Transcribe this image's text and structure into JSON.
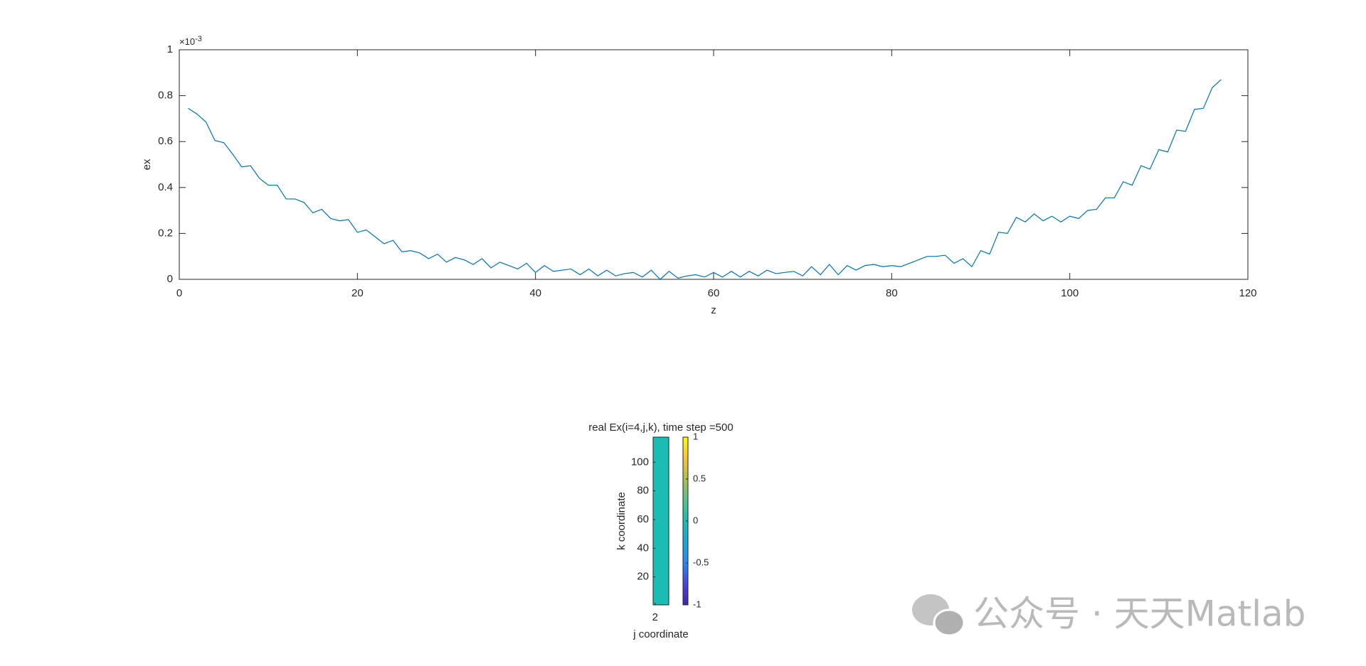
{
  "chart_data": [
    {
      "type": "line",
      "x_label": "z",
      "y_label": "ex",
      "y_exponent_base": "×10",
      "y_exponent_power": "-3",
      "xlim": [
        0,
        120
      ],
      "xticks": [
        0,
        20,
        40,
        60,
        80,
        100,
        120
      ],
      "ylim": [
        0,
        1
      ],
      "yticks": [
        0,
        0.2,
        0.4,
        0.6,
        0.8,
        1
      ],
      "x": [
        1,
        2,
        3,
        4,
        5,
        6,
        7,
        8,
        9,
        10,
        11,
        12,
        13,
        14,
        15,
        16,
        17,
        18,
        19,
        20,
        21,
        22,
        23,
        24,
        25,
        26,
        27,
        28,
        29,
        30,
        31,
        32,
        33,
        34,
        35,
        36,
        37,
        38,
        39,
        40,
        41,
        42,
        43,
        44,
        45,
        46,
        47,
        48,
        49,
        50,
        51,
        52,
        53,
        54,
        55,
        56,
        57,
        58,
        59,
        60,
        61,
        62,
        63,
        64,
        65,
        66,
        67,
        68,
        69,
        70,
        71,
        72,
        73,
        74,
        75,
        76,
        77,
        78,
        79,
        80,
        81,
        82,
        83,
        84,
        85,
        86,
        87,
        88,
        89,
        90,
        91,
        92,
        93,
        94,
        95,
        96,
        97,
        98,
        99,
        100,
        101,
        102,
        103,
        104,
        105,
        106,
        107,
        108,
        109,
        110,
        111,
        112,
        113,
        114,
        115,
        116,
        117
      ],
      "series": [
        {
          "color": "#0072bd",
          "values": [
            0.745,
            0.72,
            0.685,
            0.605,
            0.595,
            0.545,
            0.49,
            0.495,
            0.44,
            0.41,
            0.41,
            0.35,
            0.35,
            0.335,
            0.29,
            0.305,
            0.265,
            0.255,
            0.26,
            0.205,
            0.215,
            0.185,
            0.155,
            0.17,
            0.12,
            0.125,
            0.115,
            0.09,
            0.11,
            0.075,
            0.095,
            0.085,
            0.065,
            0.09,
            0.05,
            0.075,
            0.06,
            0.045,
            0.07,
            0.03,
            0.06,
            0.035,
            0.04,
            0.045,
            0.02,
            0.045,
            0.015,
            0.04,
            0.015,
            0.025,
            0.03,
            0.01,
            0.04,
            0.0,
            0.035,
            0.005,
            0.015,
            0.02,
            0.01,
            0.03,
            0.01,
            0.035,
            0.01,
            0.035,
            0.015,
            0.04,
            0.025,
            0.03,
            0.035,
            0.015,
            0.055,
            0.02,
            0.065,
            0.02,
            0.06,
            0.04,
            0.06,
            0.065,
            0.055,
            0.06,
            0.055,
            0.07,
            0.085,
            0.1,
            0.1,
            0.105,
            0.07,
            0.09,
            0.055,
            0.125,
            0.11,
            0.205,
            0.2,
            0.27,
            0.25,
            0.285,
            0.255,
            0.275,
            0.25,
            0.275,
            0.265,
            0.3,
            0.305,
            0.355,
            0.355,
            0.425,
            0.41,
            0.495,
            0.48,
            0.565,
            0.555,
            0.65,
            0.645,
            0.74,
            0.745,
            0.835,
            0.87
          ]
        }
      ]
    },
    {
      "type": "heatmap",
      "title": "real Ex(i=4,j,k), time step =500",
      "x_label": "j coordinate",
      "y_label": "k coordinate",
      "xlim": [
        1.5,
        5.5
      ],
      "xticks": [
        2
      ],
      "ylim": [
        0.5,
        117.5
      ],
      "yticks": [
        20,
        40,
        60,
        80,
        100
      ],
      "value": 0,
      "clim": [
        -1,
        1
      ],
      "cticks": [
        -1,
        -0.5,
        0,
        0.5,
        1
      ],
      "colormap": [
        "#3e26a8",
        "#4743e0",
        "#2e87f3",
        "#18a8d6",
        "#1bbcb4",
        "#55c28e",
        "#aebd54",
        "#f5c43a",
        "#f9fb0e"
      ]
    }
  ],
  "watermark": {
    "text": "公众号 · 天天Matlab"
  }
}
